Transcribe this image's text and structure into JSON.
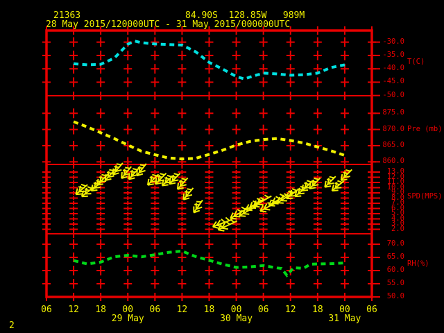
{
  "header": {
    "station_id": "21363",
    "coordinates": "84.90S  128.85W   989M",
    "period": "28 May 2015/120000UTC - 31 May 2015/000000UTC"
  },
  "footer": {
    "page_number": "2"
  },
  "colors": {
    "background": "#000000",
    "grid": "#e80000",
    "axis_text": "#e80000",
    "time_text": "#f0f000",
    "temperature": "#00e0e0",
    "pressure": "#f0f000",
    "wind": "#f0f000",
    "humidity": "#00d818"
  },
  "x_axis": {
    "hour_labels": [
      "06",
      "12",
      "18",
      "00",
      "06",
      "12",
      "18",
      "00",
      "06",
      "12",
      "18",
      "00",
      "06"
    ],
    "date_labels": [
      {
        "label": "29 May",
        "column": 3
      },
      {
        "label": "30 May",
        "column": 7
      },
      {
        "label": "31 May",
        "column": 11
      }
    ]
  },
  "chart_data": {
    "type": "line",
    "title": "Station 21363 meteogram, 28 May 2015 12UTC - 31 May 2015 00UTC",
    "x_unit": "hours since 28 May 2015 12:00 UTC, 6-hourly grid",
    "panels": [
      {
        "name": "temperature",
        "unit_label": "T(C)",
        "style": "dashed-line",
        "color_key": "temperature",
        "ticks": [
          -30.0,
          -35.0,
          -40.0,
          -45.0,
          -50.0
        ],
        "hours": [
          0,
          3,
          6,
          9,
          12,
          13.5,
          15,
          18,
          21,
          24,
          27,
          30,
          33,
          36,
          37.8,
          39,
          42,
          45,
          48,
          51,
          54,
          57,
          60
        ],
        "values": [
          -38.1,
          -38.5,
          -38.3,
          -36.0,
          -30.8,
          -29.6,
          -30.2,
          -30.7,
          -30.9,
          -31.1,
          -33.6,
          -37.6,
          -40.1,
          -42.9,
          -43.8,
          -43.1,
          -41.6,
          -41.9,
          -42.4,
          -42.2,
          -41.6,
          -39.5,
          -38.5
        ]
      },
      {
        "name": "pressure",
        "unit_label": "Pre (mb)",
        "style": "dashed-line",
        "color_key": "pressure",
        "ticks": [
          875.0,
          870.0,
          865.0,
          860.0
        ],
        "hours": [
          0,
          3,
          6,
          9,
          12,
          15,
          18,
          21,
          24,
          27,
          30,
          33,
          36,
          39,
          42,
          45,
          48,
          51,
          54,
          57,
          60
        ],
        "values": [
          872.4,
          870.8,
          869.0,
          867.2,
          865.2,
          863.3,
          862.2,
          861.2,
          860.9,
          861.1,
          862.3,
          863.6,
          865.2,
          866.3,
          866.9,
          867.2,
          866.6,
          865.8,
          864.6,
          863.4,
          862.0
        ]
      },
      {
        "name": "wind_speed",
        "unit_label": "SPD(MPS)",
        "style": "wind-barbs",
        "color_key": "wind",
        "ticks": [
          13.0,
          12.0,
          11.0,
          10.0,
          9.0,
          8.0,
          7.0,
          6.0,
          5.0,
          4.0,
          3.0,
          2.0
        ],
        "barbs": [
          [
            0.5,
            8.7,
            40
          ],
          [
            1.8,
            8.3,
            38
          ],
          [
            3.9,
            9.4,
            42
          ],
          [
            5.2,
            10.5,
            45
          ],
          [
            7.0,
            11.4,
            48
          ],
          [
            8.7,
            12.5,
            50
          ],
          [
            10.6,
            11.8,
            50
          ],
          [
            12.2,
            11.6,
            48
          ],
          [
            14.0,
            12.3,
            52
          ],
          [
            16.4,
            10.5,
            45
          ],
          [
            18.1,
            10.7,
            45
          ],
          [
            19.6,
            10.4,
            42
          ],
          [
            21.2,
            10.7,
            45
          ],
          [
            23.0,
            9.7,
            48
          ],
          [
            24.3,
            7.7,
            50
          ],
          [
            26.6,
            5.2,
            55
          ],
          [
            30.8,
            2.5,
            20
          ],
          [
            32.0,
            1.9,
            25
          ],
          [
            34.7,
            4.1,
            30
          ],
          [
            36.7,
            4.6,
            30
          ],
          [
            38.2,
            5.7,
            32
          ],
          [
            39.8,
            6.4,
            30
          ],
          [
            41.3,
            5.5,
            28
          ],
          [
            43.2,
            6.6,
            30
          ],
          [
            45.1,
            7.1,
            32
          ],
          [
            47.1,
            7.9,
            38
          ],
          [
            49.0,
            8.3,
            40
          ],
          [
            50.5,
            9.4,
            42
          ],
          [
            52.2,
            9.8,
            45
          ],
          [
            55.6,
            10.1,
            45
          ],
          [
            57.2,
            9.4,
            40
          ],
          [
            59.2,
            11.4,
            45
          ]
        ]
      },
      {
        "name": "relative_humidity",
        "unit_label": "RH(%)",
        "style": "dashed-line",
        "color_key": "humidity",
        "ticks": [
          70.0,
          65.0,
          60.0,
          55.0,
          50.0
        ],
        "hours": [
          0,
          3,
          6,
          9,
          12,
          15,
          18,
          21,
          24,
          27,
          30,
          33,
          36,
          39,
          42,
          45,
          46,
          47.2,
          48.7,
          50.8,
          52.4,
          54,
          57,
          60
        ],
        "values": [
          63.8,
          62.5,
          63.2,
          65.2,
          65.8,
          65.2,
          66.0,
          66.9,
          67.4,
          65.3,
          63.9,
          62.4,
          61.2,
          61.4,
          61.9,
          61.0,
          60.8,
          58.2,
          61.1,
          60.8,
          62.4,
          62.5,
          62.6,
          62.9
        ]
      }
    ]
  }
}
